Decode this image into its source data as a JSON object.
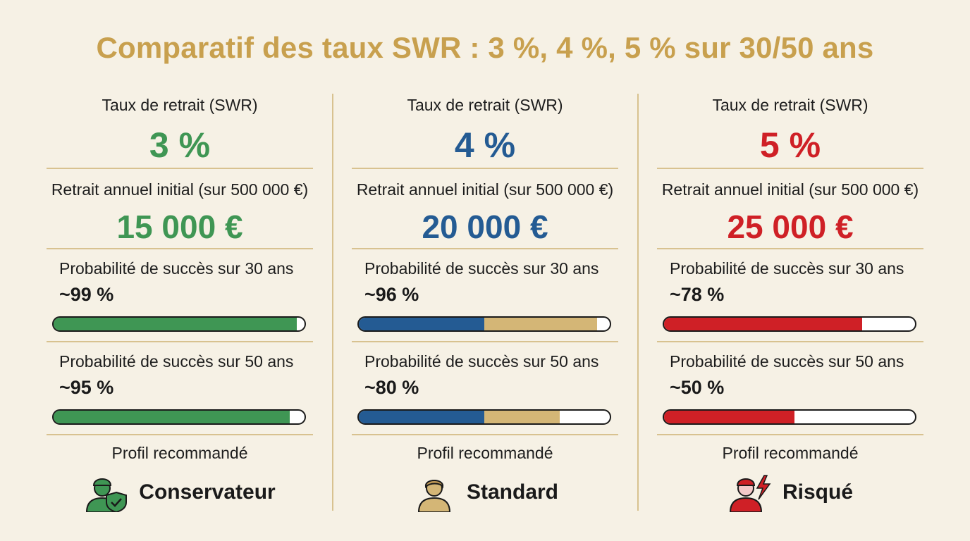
{
  "title": "Comparatif des taux SWR : 3 %, 4 %, 5 % sur 30/50 ans",
  "colors": {
    "gold": "#c8a04e",
    "conservative": "#3f9654",
    "standard": "#245b93",
    "standard_extra": "#d4b676",
    "risky": "#cf2026"
  },
  "columns": [
    {
      "swr_label": "Taux de retrait (SWR)",
      "swr_value": "3 %",
      "withdrawal_label": "Retrait annuel initial (sur 500 000 €)",
      "withdrawal_value": "15 000 €",
      "prob30_label": "Probabilité de succès sur 30 ans",
      "prob30_value": "~99 %",
      "prob30_fraction": 0.97,
      "prob50_label": "Probabilité de succès sur 50 ans",
      "prob50_value": "~95 %",
      "prob50_fraction": 0.94,
      "profile_label": "Profil recommandé",
      "profile_name": "Conservateur",
      "profile_icon": "person-shield-check-icon"
    },
    {
      "swr_label": "Taux de retrait (SWR)",
      "swr_value": "4 %",
      "withdrawal_label": "Retrait annuel initial (sur 500 000 €)",
      "withdrawal_value": "20 000 €",
      "prob30_label": "Probabilité de succès sur 30 ans",
      "prob30_value": "~96 %",
      "prob30_fraction": 0.95,
      "prob30_primary_fraction": 0.5,
      "prob50_label": "Probabilité de succès sur 50 ans",
      "prob50_value": "~80 %",
      "prob50_fraction": 0.8,
      "prob50_primary_fraction": 0.5,
      "profile_label": "Profil recommandé",
      "profile_name": "Standard",
      "profile_icon": "person-icon"
    },
    {
      "swr_label": "Taux de retrait (SWR)",
      "swr_value": "5 %",
      "withdrawal_label": "Retrait annuel initial (sur 500 000 €)",
      "withdrawal_value": "25 000 €",
      "prob30_label": "Probabilité de succès sur 30 ans",
      "prob30_value": "~78 %",
      "prob30_fraction": 0.79,
      "prob50_label": "Probabilité de succès sur 50 ans",
      "prob50_value": "~50 %",
      "prob50_fraction": 0.52,
      "profile_label": "Profil recommandé",
      "profile_name": "Risqué",
      "profile_icon": "person-lightning-icon"
    }
  ]
}
